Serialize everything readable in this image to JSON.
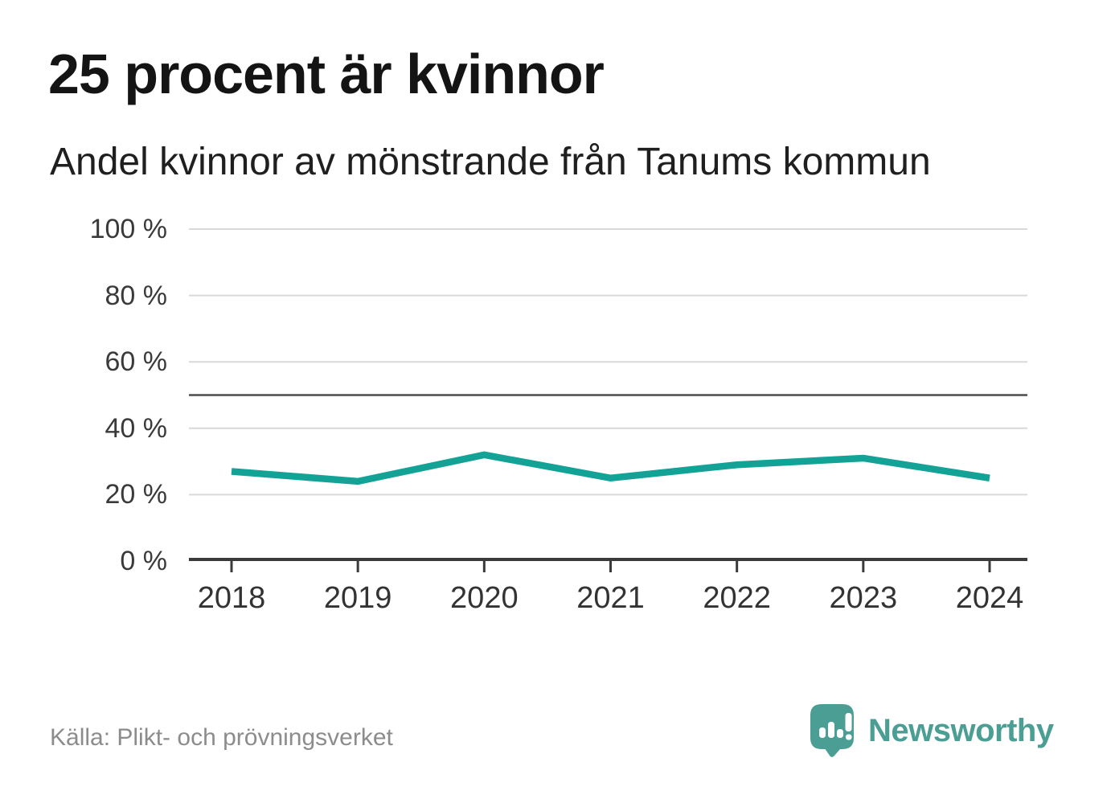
{
  "header": {
    "title": "25 procent är kvinnor",
    "subtitle": "Andel kvinnor av mönstrande från Tanums kommun"
  },
  "chart_data": {
    "type": "line",
    "title": "25 procent är kvinnor",
    "subtitle": "Andel kvinnor av mönstrande från Tanums kommun",
    "x": [
      2018,
      2019,
      2020,
      2021,
      2022,
      2023,
      2024
    ],
    "series": [
      {
        "name": "Andel kvinnor av mönstrande",
        "values": [
          27,
          24,
          32,
          25,
          29,
          31,
          25
        ]
      }
    ],
    "unit": "%",
    "ylim": [
      0,
      100
    ],
    "yticks": [
      0,
      20,
      40,
      60,
      80,
      100
    ],
    "ytick_labels": [
      "0 %",
      "20 %",
      "40 %",
      "60 %",
      "80 %",
      "100 %"
    ],
    "xtick_labels": [
      "2018",
      "2019",
      "2020",
      "2021",
      "2022",
      "2023",
      "2024"
    ],
    "reference_line": 50,
    "grid": "horizontal",
    "legend": "none",
    "colors": {
      "line": "#12a296",
      "grid_light": "#d9d9d9",
      "reference": "#4d4d4d",
      "axis": "#3a3a3a"
    }
  },
  "footer": {
    "source": "Källa: Plikt- och prövningsverket",
    "brand_name": "Newsworthy",
    "brand_color": "#4a9e94"
  }
}
